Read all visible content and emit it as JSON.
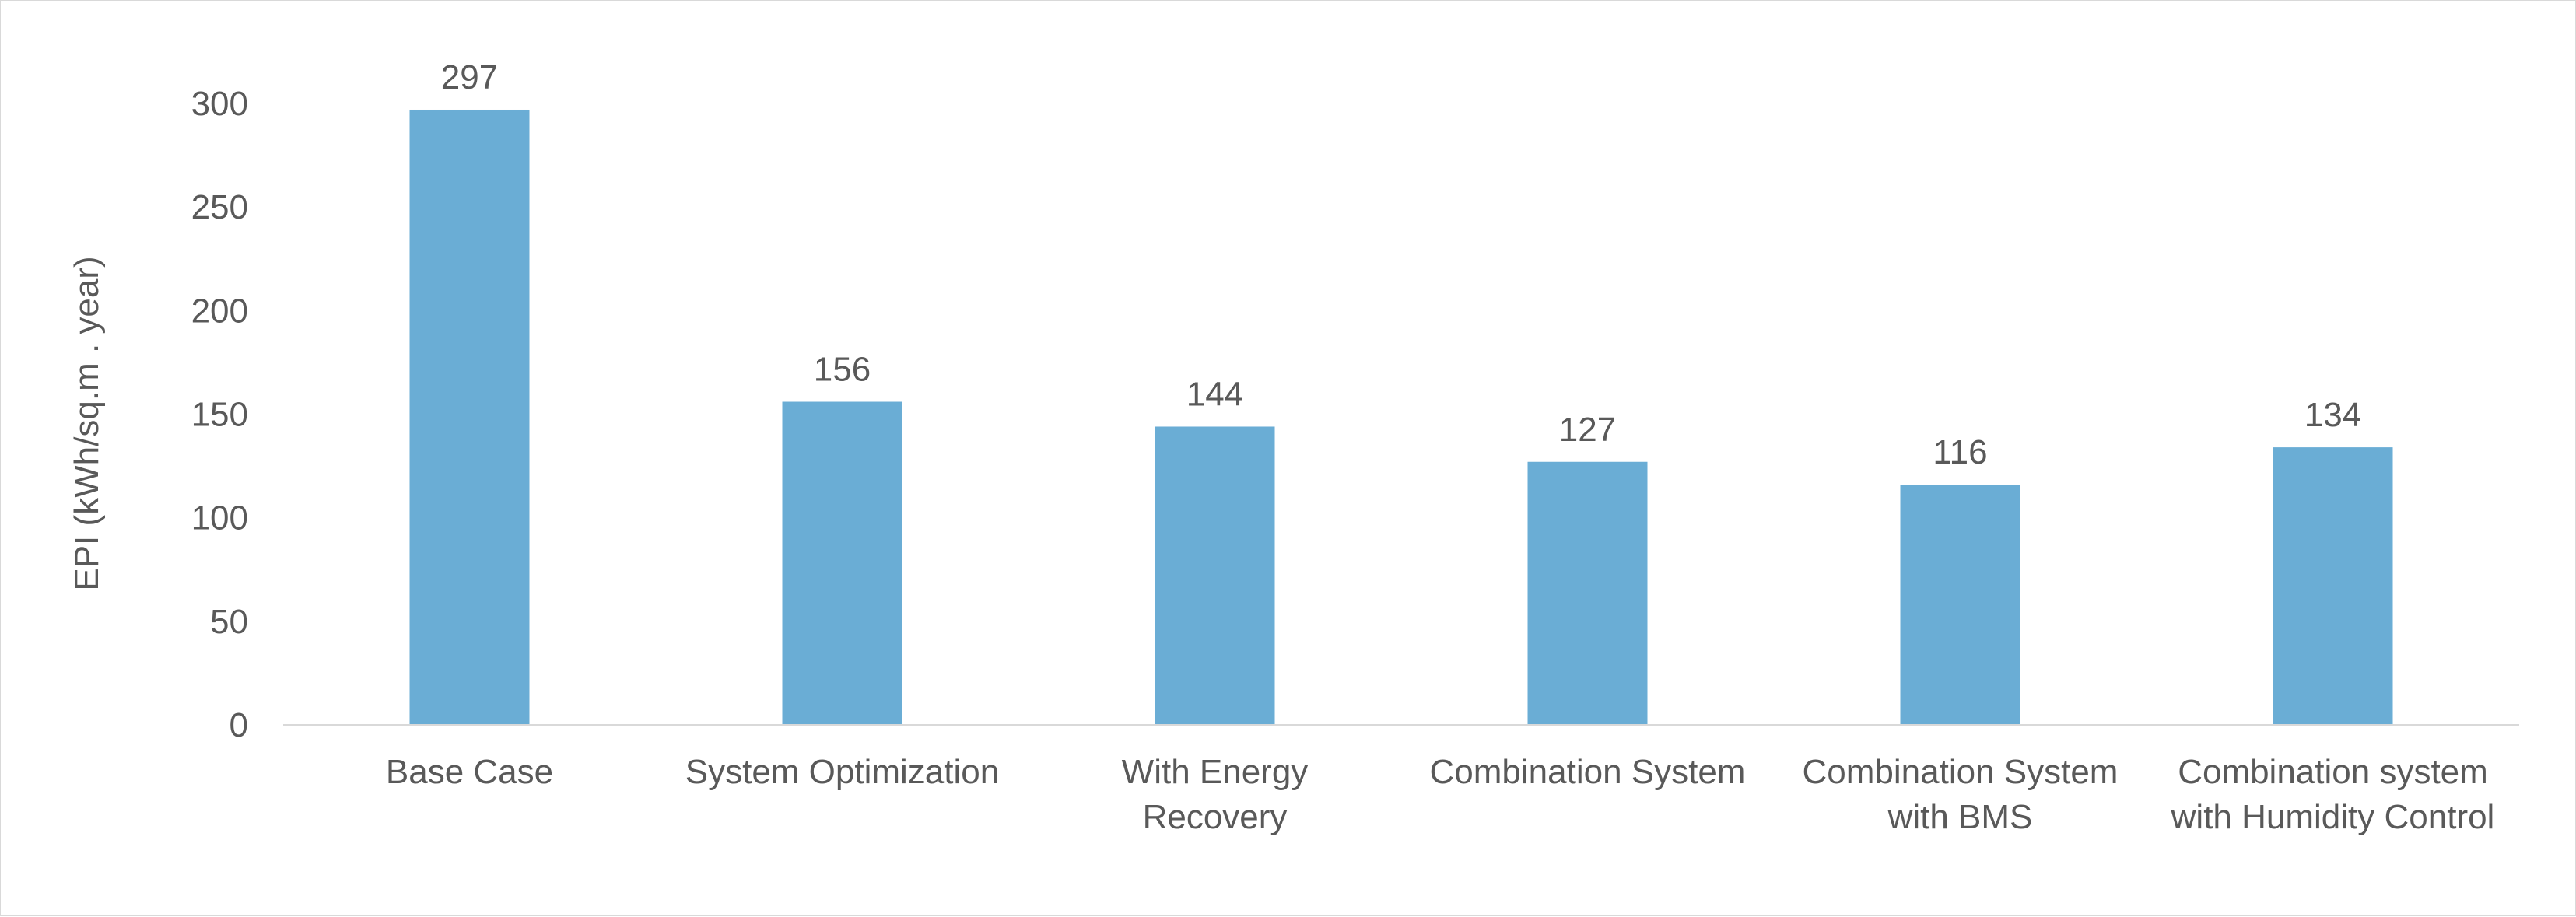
{
  "chart_data": {
    "type": "bar",
    "title": "",
    "xlabel": "",
    "ylabel": "EPI (kWh/sq.m . year)",
    "ylim": [
      0,
      300
    ],
    "yticks": [
      0,
      50,
      100,
      150,
      200,
      250,
      300
    ],
    "grid": false,
    "legend": "none",
    "bar_color": "#6aadd5",
    "categories": [
      [
        "Base Case"
      ],
      [
        "System Optimization"
      ],
      [
        "With Energy",
        "Recovery"
      ],
      [
        "Combination System"
      ],
      [
        "Combination System",
        "with BMS"
      ],
      [
        "Combination system",
        "with Humidity Control"
      ]
    ],
    "values": [
      297,
      156,
      144,
      127,
      116,
      134
    ]
  }
}
